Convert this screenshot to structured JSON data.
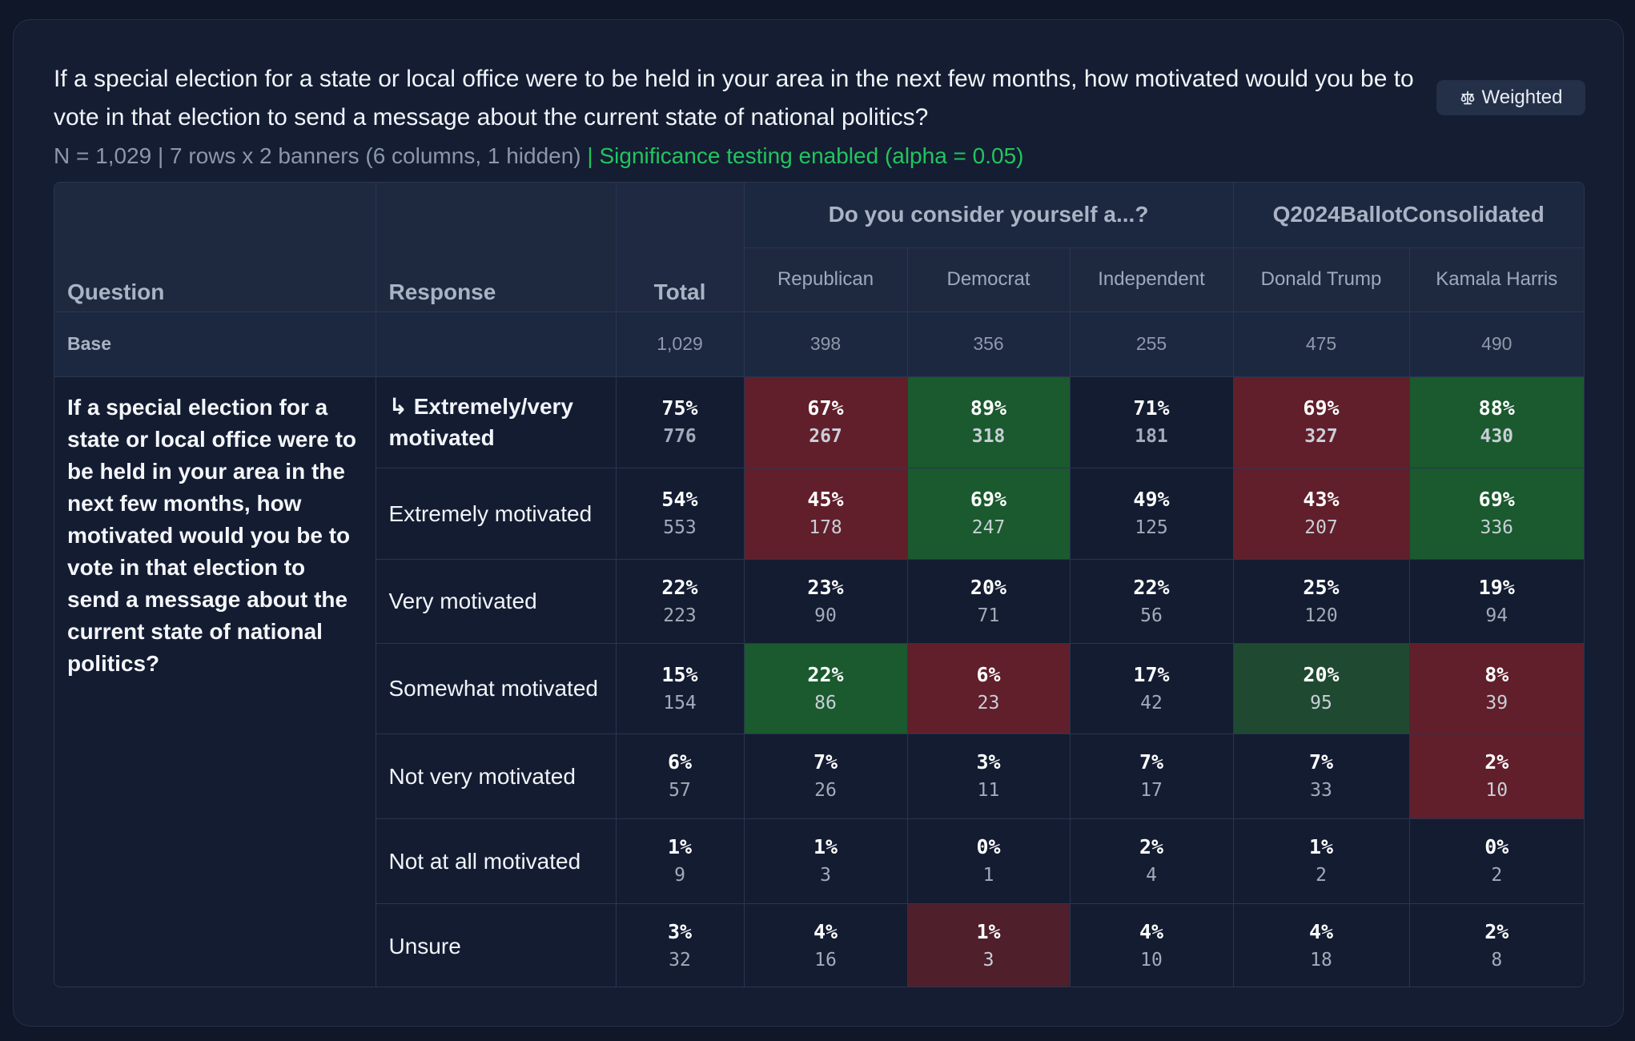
{
  "header": {
    "title": "If a special election for a state or local office were to be held in your area in the next few months, how motivated would you be to vote in that election to send a message about the current state of national politics?",
    "meta": "N = 1,029 | 7 rows x 2 banners (6 columns, 1 hidden)",
    "significance": "| Significance testing enabled (alpha = 0.05)",
    "weighted_label": "Weighted",
    "weighted_icon": "scale-icon"
  },
  "table": {
    "question_header": "Question",
    "response_header": "Response",
    "total_header": "Total",
    "banners": [
      {
        "label": "Do you consider yourself a...?",
        "columns": [
          "Republican",
          "Democrat",
          "Independent"
        ]
      },
      {
        "label": "Q2024BallotConsolidated",
        "columns": [
          "Donald Trump",
          "Kamala Harris"
        ]
      }
    ],
    "base": {
      "label": "Base",
      "values": [
        "1,029",
        "398",
        "356",
        "255",
        "475",
        "490"
      ]
    },
    "question_text": "If a special election for a state or local office were to be held in your area in the next few months, how motivated would you be to vote in that election to send a message about the current state of national politics?",
    "rows": [
      {
        "label": "↳ Extremely/very motivated",
        "cells": [
          {
            "pct": "75%",
            "n": "776"
          },
          {
            "pct": "67%",
            "n": "267",
            "sig": "low"
          },
          {
            "pct": "89%",
            "n": "318",
            "sig": "high"
          },
          {
            "pct": "71%",
            "n": "181"
          },
          {
            "pct": "69%",
            "n": "327",
            "sig": "low"
          },
          {
            "pct": "88%",
            "n": "430",
            "sig": "high"
          }
        ]
      },
      {
        "label": "Extremely motivated",
        "cells": [
          {
            "pct": "54%",
            "n": "553"
          },
          {
            "pct": "45%",
            "n": "178",
            "sig": "low"
          },
          {
            "pct": "69%",
            "n": "247",
            "sig": "high"
          },
          {
            "pct": "49%",
            "n": "125"
          },
          {
            "pct": "43%",
            "n": "207",
            "sig": "low"
          },
          {
            "pct": "69%",
            "n": "336",
            "sig": "high"
          }
        ]
      },
      {
        "label": "Very motivated",
        "cells": [
          {
            "pct": "22%",
            "n": "223"
          },
          {
            "pct": "23%",
            "n": "90"
          },
          {
            "pct": "20%",
            "n": "71"
          },
          {
            "pct": "22%",
            "n": "56"
          },
          {
            "pct": "25%",
            "n": "120"
          },
          {
            "pct": "19%",
            "n": "94"
          }
        ]
      },
      {
        "label": "Somewhat motivated",
        "cells": [
          {
            "pct": "15%",
            "n": "154"
          },
          {
            "pct": "22%",
            "n": "86",
            "sig": "high"
          },
          {
            "pct": "6%",
            "n": "23",
            "sig": "low"
          },
          {
            "pct": "17%",
            "n": "42"
          },
          {
            "pct": "20%",
            "n": "95",
            "sig": "high-soft"
          },
          {
            "pct": "8%",
            "n": "39",
            "sig": "low"
          }
        ]
      },
      {
        "label": "Not very motivated",
        "cells": [
          {
            "pct": "6%",
            "n": "57"
          },
          {
            "pct": "7%",
            "n": "26"
          },
          {
            "pct": "3%",
            "n": "11"
          },
          {
            "pct": "7%",
            "n": "17"
          },
          {
            "pct": "7%",
            "n": "33"
          },
          {
            "pct": "2%",
            "n": "10",
            "sig": "low"
          }
        ]
      },
      {
        "label": "Not at all motivated",
        "cells": [
          {
            "pct": "1%",
            "n": "9"
          },
          {
            "pct": "1%",
            "n": "3"
          },
          {
            "pct": "0%",
            "n": "1"
          },
          {
            "pct": "2%",
            "n": "4"
          },
          {
            "pct": "1%",
            "n": "2"
          },
          {
            "pct": "0%",
            "n": "2"
          }
        ]
      },
      {
        "label": "Unsure",
        "cells": [
          {
            "pct": "3%",
            "n": "32"
          },
          {
            "pct": "4%",
            "n": "16"
          },
          {
            "pct": "1%",
            "n": "3",
            "sig": "low-soft"
          },
          {
            "pct": "4%",
            "n": "10"
          },
          {
            "pct": "4%",
            "n": "18"
          },
          {
            "pct": "2%",
            "n": "8"
          }
        ]
      }
    ]
  },
  "colors": {
    "significant_high": "#1a5a2e",
    "significant_low": "#611f2b",
    "significance_text": "#22c55e"
  }
}
